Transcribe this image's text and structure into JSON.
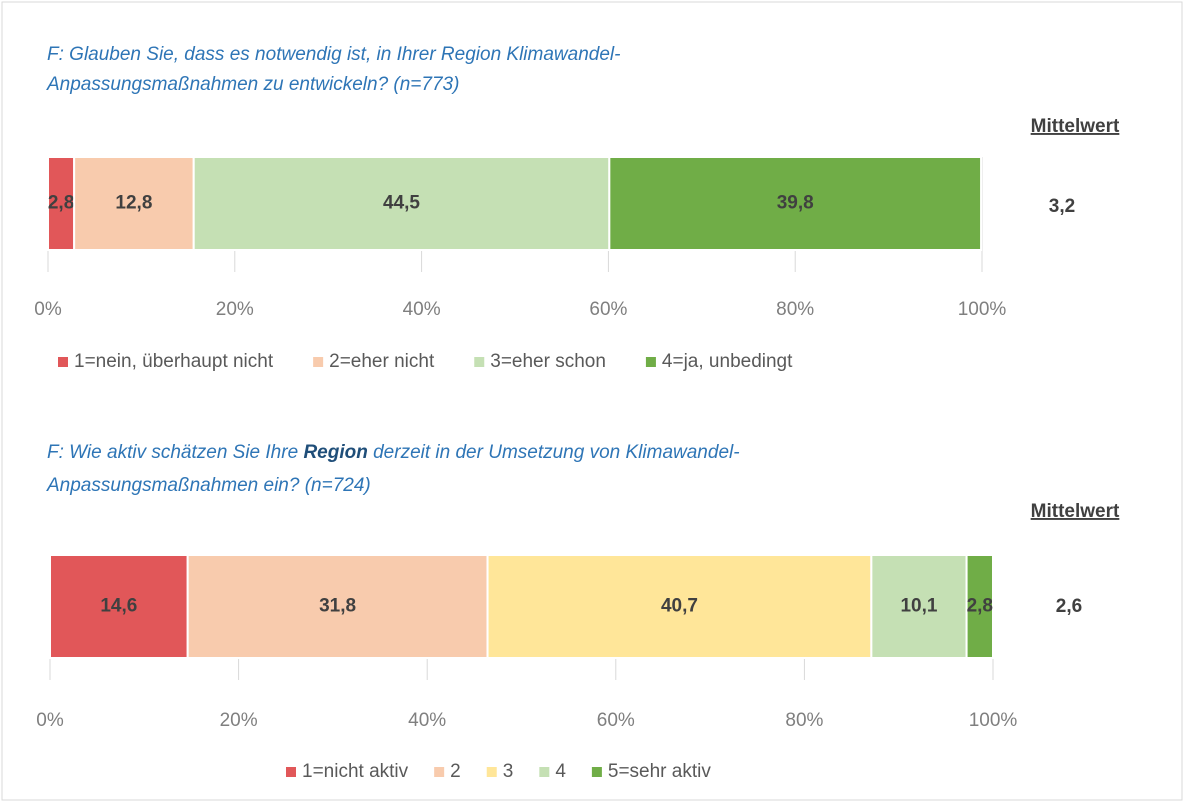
{
  "chart_data": [
    {
      "type": "stacked_bar_horizontal",
      "title": [
        "F: Glauben Sie, dass es notwendig ist, in Ihrer Region Klimawandel-",
        "Anpassungsmaßnahmen zu entwickeln? (n=773)"
      ],
      "mean_header": "Mittelwert",
      "mean": 3.2,
      "mean_value_label": "3,2",
      "xlim": [
        0,
        100
      ],
      "xticks": [
        {
          "value": 0,
          "label": "0%"
        },
        {
          "value": 20,
          "label": "20%"
        },
        {
          "value": 40,
          "label": "40%"
        },
        {
          "value": 60,
          "label": "60%"
        },
        {
          "value": 80,
          "label": "80%"
        },
        {
          "value": 100,
          "label": "100%"
        }
      ],
      "series": [
        {
          "name": "1=nein, überhaupt nicht",
          "color": "#e15759",
          "values": [
            2.8
          ],
          "value_labels": [
            "2,8"
          ]
        },
        {
          "name": "2=eher nicht",
          "color": "#f8cbad",
          "values": [
            12.8
          ],
          "value_labels": [
            "12,8"
          ]
        },
        {
          "name": "3=eher schon",
          "color": "#c5e0b4",
          "values": [
            44.5
          ],
          "value_labels": [
            "44,5"
          ]
        },
        {
          "name": "4=ja, unbedingt",
          "color": "#70ad47",
          "values": [
            39.8
          ],
          "value_labels": [
            "39,8"
          ]
        }
      ]
    },
    {
      "type": "stacked_bar_horizontal",
      "title": [
        [
          "F: Wie aktiv schätzen Sie Ihre ",
          "Region",
          " derzeit in der Umsetzung von Klimawandel-"
        ],
        "Anpassungsmaßnahmen ein? (n=724)"
      ],
      "mean_header": "Mittelwert",
      "mean": 2.6,
      "mean_value_label": "2,6",
      "xlim": [
        0,
        100
      ],
      "xticks": [
        {
          "value": 0,
          "label": "0%"
        },
        {
          "value": 20,
          "label": "20%"
        },
        {
          "value": 40,
          "label": "40%"
        },
        {
          "value": 60,
          "label": "60%"
        },
        {
          "value": 80,
          "label": "80%"
        },
        {
          "value": 100,
          "label": "100%"
        }
      ],
      "series": [
        {
          "name": "1=nicht aktiv",
          "color": "#e15759",
          "values": [
            14.6
          ],
          "value_labels": [
            "14,6"
          ]
        },
        {
          "name": "2",
          "color": "#f8cbad",
          "values": [
            31.8
          ],
          "value_labels": [
            "31,8"
          ]
        },
        {
          "name": "3",
          "color": "#ffe699",
          "values": [
            40.7
          ],
          "value_labels": [
            "40,7"
          ]
        },
        {
          "name": "4",
          "color": "#c5e0b4",
          "values": [
            10.1
          ],
          "value_labels": [
            "10,1"
          ]
        },
        {
          "name": "5=sehr aktiv",
          "color": "#70ad47",
          "values": [
            2.8
          ],
          "value_labels": [
            "2,8"
          ]
        }
      ]
    }
  ]
}
